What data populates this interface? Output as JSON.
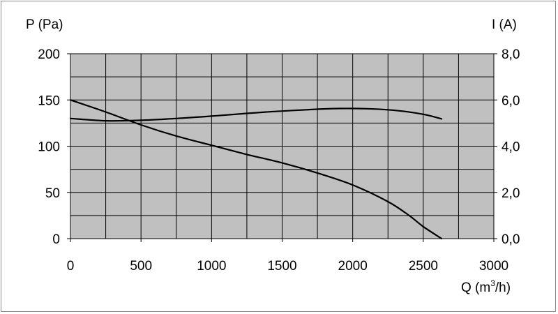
{
  "chart_data": {
    "type": "line",
    "ylabel_left": "P (Pa)",
    "ylabel_right": "I (A)",
    "xlabel_prefix": "Q (m",
    "xlabel_sup": "3",
    "xlabel_suffix": "/h)",
    "xlim": [
      0,
      3000
    ],
    "ylim_left": [
      0,
      200
    ],
    "ylim_right": [
      0,
      8
    ],
    "x_ticks": [
      "0",
      "500",
      "1000",
      "1500",
      "2000",
      "2500",
      "3000"
    ],
    "y_ticks_left": [
      "0",
      "50",
      "100",
      "150",
      "200"
    ],
    "y_ticks_right": [
      "0,0",
      "2,0",
      "4,0",
      "6,0",
      "8,0"
    ],
    "grid": true,
    "plot_background": "#c0c0c0",
    "line_color": "#000000",
    "series": [
      {
        "axis": "left",
        "x": [
          0,
          250,
          500,
          750,
          1000,
          1250,
          1500,
          1750,
          2000,
          2250,
          2400,
          2500,
          2630
        ],
        "values": [
          150,
          137,
          123,
          111,
          101,
          91,
          82,
          71,
          58,
          40,
          25,
          13,
          0
        ]
      },
      {
        "axis": "right",
        "x": [
          0,
          250,
          500,
          750,
          1000,
          1250,
          1500,
          1750,
          1900,
          2100,
          2300,
          2500,
          2630
        ],
        "values": [
          5.2,
          5.1,
          5.12,
          5.2,
          5.3,
          5.42,
          5.52,
          5.6,
          5.63,
          5.62,
          5.55,
          5.38,
          5.18
        ]
      }
    ]
  }
}
